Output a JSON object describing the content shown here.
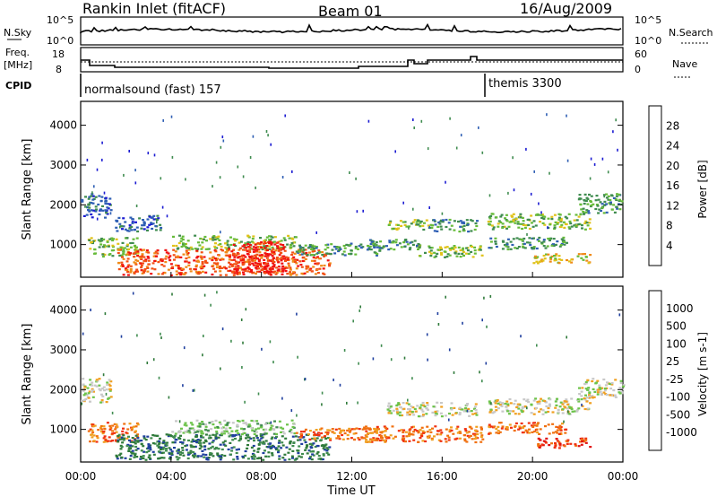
{
  "header": {
    "station": "Rankin Inlet (fitACF)",
    "beam": "Beam 01",
    "date": "16/Aug/2009"
  },
  "top_panel": {
    "nsky_label": "N.Sky",
    "nsky_ticks": [
      "10^5",
      "10^0"
    ],
    "nsearch_label": "N.Search",
    "nsearch_ticks": [
      "10^5",
      "10^0"
    ],
    "freq_label": "Freq.",
    "freq_unit": "[MHz]",
    "freq_ticks": [
      "18",
      "8"
    ],
    "nave_label": "Nave",
    "nave_ticks": [
      "60",
      "0"
    ],
    "cpid_label": "CPID",
    "cpid_segments": [
      {
        "label": "normalsound (fast) 157",
        "start_hour": 0
      },
      {
        "label": "themis 3300",
        "start_hour": 18.1
      }
    ]
  },
  "chart_data": [
    {
      "type": "heatmap",
      "name": "power",
      "ylabel": "Slant Range [km]",
      "ylim": [
        180,
        4600
      ],
      "yticks": [
        "1000",
        "2000",
        "3000",
        "4000"
      ],
      "xlim_hours": [
        0,
        24
      ],
      "colorbar": {
        "label": "Power [dB]",
        "levels": [
          "4",
          "8",
          "12",
          "16",
          "20",
          "24",
          "28"
        ],
        "colors": [
          "#1b1bd2",
          "#2f5fb4",
          "#3f8c4f",
          "#66bb39",
          "#e0c21a",
          "#f08a18",
          "#f25014",
          "#f01010"
        ]
      },
      "regions": [
        {
          "t": [
            0.0,
            1.3
          ],
          "r": [
            1700,
            2300
          ],
          "level": 1
        },
        {
          "t": [
            0.3,
            2.5
          ],
          "r": [
            700,
            1200
          ],
          "level": 3
        },
        {
          "t": [
            1.5,
            3.5
          ],
          "r": [
            1350,
            1750
          ],
          "level": 1
        },
        {
          "t": [
            1.6,
            11.0
          ],
          "r": [
            250,
            900
          ],
          "level": 6
        },
        {
          "t": [
            4.0,
            9.5
          ],
          "r": [
            900,
            1250
          ],
          "level": 3
        },
        {
          "t": [
            6.5,
            9.0
          ],
          "r": [
            300,
            1100
          ],
          "level": 7
        },
        {
          "t": [
            9.5,
            13.5
          ],
          "r": [
            750,
            1050
          ],
          "level": 2
        },
        {
          "t": [
            12.5,
            15.0
          ],
          "r": [
            900,
            1150
          ],
          "level": 2
        },
        {
          "t": [
            13.5,
            15.5
          ],
          "r": [
            1400,
            1650
          ],
          "level": 3
        },
        {
          "t": [
            14.8,
            17.8
          ],
          "r": [
            700,
            1000
          ],
          "level": 3
        },
        {
          "t": [
            15.5,
            17.5
          ],
          "r": [
            1350,
            1650
          ],
          "level": 2
        },
        {
          "t": [
            18.0,
            22.5
          ],
          "r": [
            1400,
            1800
          ],
          "level": 3
        },
        {
          "t": [
            18.0,
            21.5
          ],
          "r": [
            900,
            1200
          ],
          "level": 2
        },
        {
          "t": [
            20.0,
            22.5
          ],
          "r": [
            550,
            800
          ],
          "level": 4
        },
        {
          "t": [
            22.0,
            24.0
          ],
          "r": [
            1800,
            2300
          ],
          "level": 2
        }
      ]
    },
    {
      "type": "heatmap",
      "name": "velocity",
      "ylabel": "Slant Range [km]",
      "ylim": [
        180,
        4600
      ],
      "yticks": [
        "1000",
        "2000",
        "3000",
        "4000"
      ],
      "xlabel": "Time UT",
      "xticks": [
        "00:00",
        "04:00",
        "08:00",
        "12:00",
        "16:00",
        "20:00",
        "00:00"
      ],
      "xlim_hours": [
        0,
        24
      ],
      "colorbar": {
        "label": "Velocity [m s-1]",
        "levels": [
          "1000",
          "500",
          "100",
          "25",
          "-25",
          "-100",
          "-500",
          "-1000"
        ],
        "colors": [
          "#1f3f9e",
          "#2f7a3a",
          "#3f8c4f",
          "#6cc34a",
          "#c8c8c8",
          "#f0a020",
          "#f07010",
          "#f03010",
          "#e01010"
        ]
      },
      "regions": [
        {
          "t": [
            0.0,
            1.3
          ],
          "r": [
            1700,
            2300
          ],
          "level": 4
        },
        {
          "t": [
            0.3,
            2.5
          ],
          "r": [
            700,
            1200
          ],
          "level": 6
        },
        {
          "t": [
            1.5,
            11.0
          ],
          "r": [
            250,
            900
          ],
          "level": 1
        },
        {
          "t": [
            4.0,
            9.5
          ],
          "r": [
            900,
            1250
          ],
          "level": 3
        },
        {
          "t": [
            9.5,
            13.5
          ],
          "r": [
            750,
            1050
          ],
          "level": 6
        },
        {
          "t": [
            12.5,
            17.8
          ],
          "r": [
            700,
            1100
          ],
          "level": 6
        },
        {
          "t": [
            13.5,
            17.5
          ],
          "r": [
            1350,
            1700
          ],
          "level": 4
        },
        {
          "t": [
            18.0,
            22.5
          ],
          "r": [
            1400,
            1800
          ],
          "level": 4
        },
        {
          "t": [
            18.0,
            21.5
          ],
          "r": [
            900,
            1200
          ],
          "level": 6
        },
        {
          "t": [
            20.0,
            22.5
          ],
          "r": [
            550,
            800
          ],
          "level": 7
        },
        {
          "t": [
            22.0,
            24.0
          ],
          "r": [
            1800,
            2300
          ],
          "level": 4
        }
      ]
    }
  ]
}
